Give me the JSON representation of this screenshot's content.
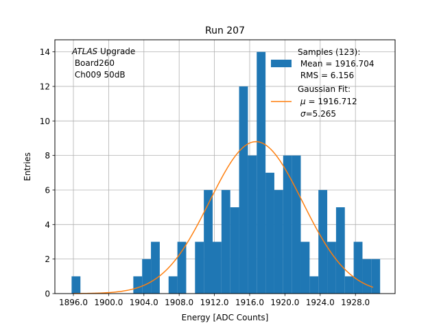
{
  "chart_data": {
    "type": "bar",
    "title": "Run 207",
    "xlabel": "Energy [ADC Counts]",
    "ylabel": "Entries",
    "xlim": [
      1893.9,
      1932.5
    ],
    "ylim": [
      0,
      14.7
    ],
    "grid": true,
    "bin_width": 1,
    "x_ticks": [
      1896,
      1900,
      1904,
      1908,
      1912,
      1916,
      1920,
      1924,
      1928
    ],
    "x_tick_labels": [
      "1896.0",
      "1900.0",
      "1904.0",
      "1908.0",
      "1912.0",
      "1916.0",
      "1920.0",
      "1924.0",
      "1928.0"
    ],
    "y_ticks": [
      0,
      2,
      4,
      6,
      8,
      10,
      12,
      14
    ],
    "y_tick_labels": [
      "0",
      "2",
      "4",
      "6",
      "8",
      "10",
      "12",
      "14"
    ],
    "bins": [
      {
        "x": 1895.8,
        "count": 1
      },
      {
        "x": 1902.8,
        "count": 1
      },
      {
        "x": 1903.8,
        "count": 2
      },
      {
        "x": 1904.8,
        "count": 3
      },
      {
        "x": 1906.8,
        "count": 1
      },
      {
        "x": 1907.8,
        "count": 3
      },
      {
        "x": 1909.8,
        "count": 3
      },
      {
        "x": 1910.8,
        "count": 6
      },
      {
        "x": 1911.8,
        "count": 3
      },
      {
        "x": 1912.8,
        "count": 6
      },
      {
        "x": 1913.8,
        "count": 5
      },
      {
        "x": 1914.8,
        "count": 12
      },
      {
        "x": 1915.8,
        "count": 8
      },
      {
        "x": 1916.8,
        "count": 14
      },
      {
        "x": 1917.8,
        "count": 7
      },
      {
        "x": 1918.8,
        "count": 6
      },
      {
        "x": 1919.8,
        "count": 8
      },
      {
        "x": 1920.8,
        "count": 8
      },
      {
        "x": 1921.8,
        "count": 3
      },
      {
        "x": 1922.8,
        "count": 1
      },
      {
        "x": 1923.8,
        "count": 6
      },
      {
        "x": 1924.8,
        "count": 3
      },
      {
        "x": 1925.8,
        "count": 5
      },
      {
        "x": 1926.8,
        "count": 1
      },
      {
        "x": 1927.8,
        "count": 3
      },
      {
        "x": 1928.8,
        "count": 2
      },
      {
        "x": 1929.8,
        "count": 2
      }
    ],
    "fit": {
      "type": "gaussian",
      "mu": 1916.712,
      "sigma": 5.265,
      "amplitude": 8.8,
      "x_range": [
        1896.0,
        1930.0
      ]
    },
    "legend": {
      "placement": "upper-right",
      "samples_line1": "Samples (123):",
      "samples_line2": " Mean = 1916.704",
      "samples_line3": " RMS = 6.156",
      "fit_line1": "Gaussian Fit:",
      "fit_line2": " = 1916.712",
      "fit_line3": "=5.265"
    },
    "annotation": {
      "placement": "upper-left",
      "line1_italic": "ATLAS",
      "line1_rest": " Upgrade",
      "line2": " Board260",
      "line3": " Ch009 50dB"
    },
    "colors": {
      "bars": "#1f77b4",
      "fit_line": "#ff7f0e",
      "grid": "#b0b0b0",
      "axes": "#000000"
    }
  }
}
